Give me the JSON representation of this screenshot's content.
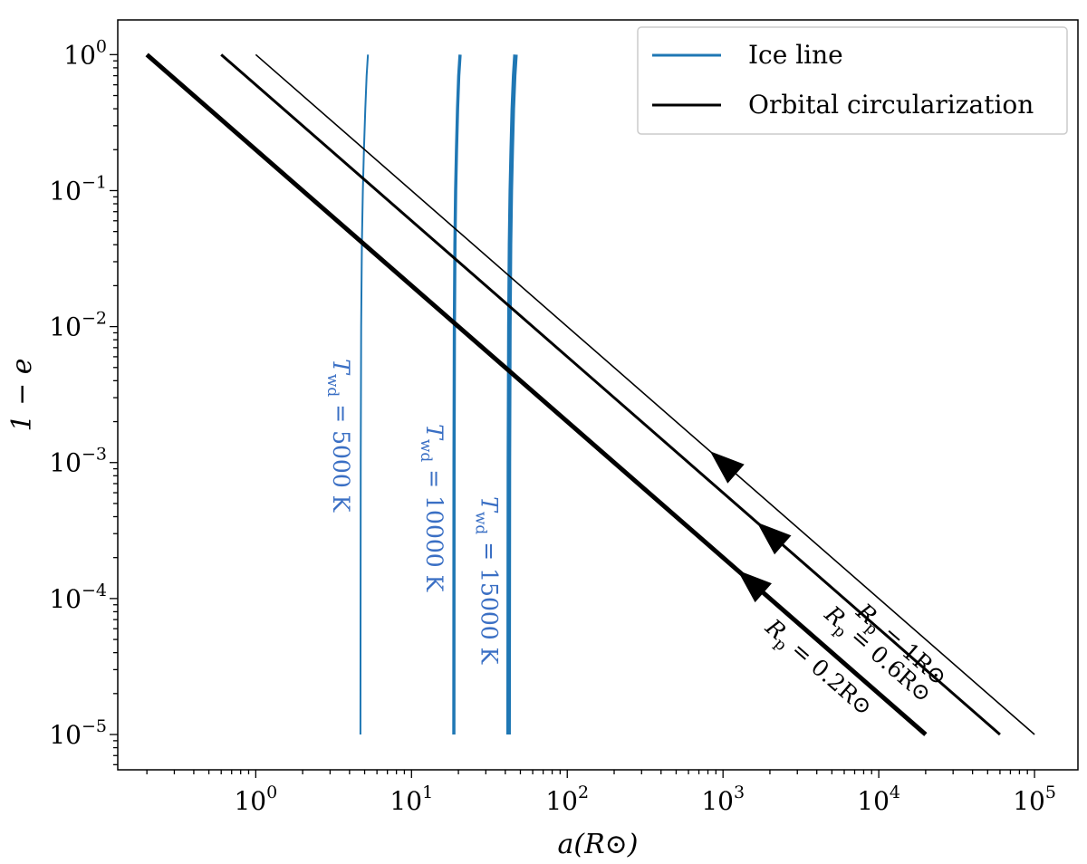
{
  "chart_data": {
    "type": "line",
    "title": "",
    "xscale": "log",
    "yscale": "log",
    "xlim": [
      0.13,
      190000
    ],
    "ylim": [
      5.5e-06,
      1.8
    ],
    "xlabel": "a(R⊙)",
    "ylabel": "1 − e",
    "x_ticks": [
      {
        "base": "10",
        "exp": "0"
      },
      {
        "base": "10",
        "exp": "1"
      },
      {
        "base": "10",
        "exp": "2"
      },
      {
        "base": "10",
        "exp": "3"
      },
      {
        "base": "10",
        "exp": "4"
      },
      {
        "base": "10",
        "exp": "5"
      }
    ],
    "y_ticks": [
      {
        "base": "10",
        "exp": "0"
      },
      {
        "base": "10",
        "exp": "−1"
      },
      {
        "base": "10",
        "exp": "−2"
      },
      {
        "base": "10",
        "exp": "−3"
      },
      {
        "base": "10",
        "exp": "−4"
      },
      {
        "base": "10",
        "exp": "−5"
      }
    ],
    "grid": false,
    "legend": {
      "placement": "top-right",
      "entries": [
        {
          "label": "Ice line",
          "color": "#1f77b4"
        },
        {
          "label": "Orbital circularization",
          "color": "#000000"
        }
      ]
    },
    "series": [
      {
        "group": "ice_line",
        "color": "#1f77b4",
        "width": 2,
        "x": [
          4.7,
          4.72,
          4.75,
          4.8,
          4.87,
          4.95,
          5.05,
          5.15,
          5.25
        ],
        "y": [
          1e-05,
          0.001,
          0.01,
          0.04,
          0.1,
          0.2,
          0.4,
          0.7,
          1.0
        ],
        "label_main": "T",
        "label_sub": "wd",
        "label_rest": " = 5000 K"
      },
      {
        "group": "ice_line",
        "color": "#1f77b4",
        "width": 3.5,
        "x": [
          18.7,
          18.75,
          18.85,
          19.0,
          19.2,
          19.45,
          19.75,
          20.1,
          20.5
        ],
        "y": [
          1e-05,
          0.001,
          0.01,
          0.04,
          0.1,
          0.2,
          0.4,
          0.7,
          1.0
        ],
        "label_main": "T",
        "label_sub": "wd",
        "label_rest": " = 10000 K"
      },
      {
        "group": "ice_line",
        "color": "#1f77b4",
        "width": 5,
        "x": [
          42.0,
          42.2,
          42.5,
          42.9,
          43.4,
          44.0,
          44.7,
          45.6,
          46.5
        ],
        "y": [
          1e-05,
          0.001,
          0.01,
          0.04,
          0.1,
          0.2,
          0.4,
          0.7,
          1.0
        ],
        "label_main": "T",
        "label_sub": "wd",
        "label_rest": " = 15000 K"
      },
      {
        "group": "circularization",
        "color": "#000000",
        "width": 5,
        "x": [
          0.2,
          20000
        ],
        "y": [
          1.0,
          1e-05
        ],
        "arrow_at": 1500,
        "label_main": "R",
        "label_sub": "p",
        "label_rest": " = 0.2R⊙"
      },
      {
        "group": "circularization",
        "color": "#000000",
        "width": 3,
        "x": [
          0.6,
          60000
        ],
        "y": [
          1.0,
          1e-05
        ],
        "arrow_at": 2000,
        "label_main": "R",
        "label_sub": "p",
        "label_rest": " = 0.6R⊙"
      },
      {
        "group": "circularization",
        "color": "#000000",
        "width": 1.6,
        "x": [
          1.0,
          100000
        ],
        "y": [
          1.0,
          1e-05
        ],
        "arrow_at": 1000,
        "label_main": "R",
        "label_sub": "p",
        "label_rest": " = 1R⊙"
      }
    ]
  }
}
